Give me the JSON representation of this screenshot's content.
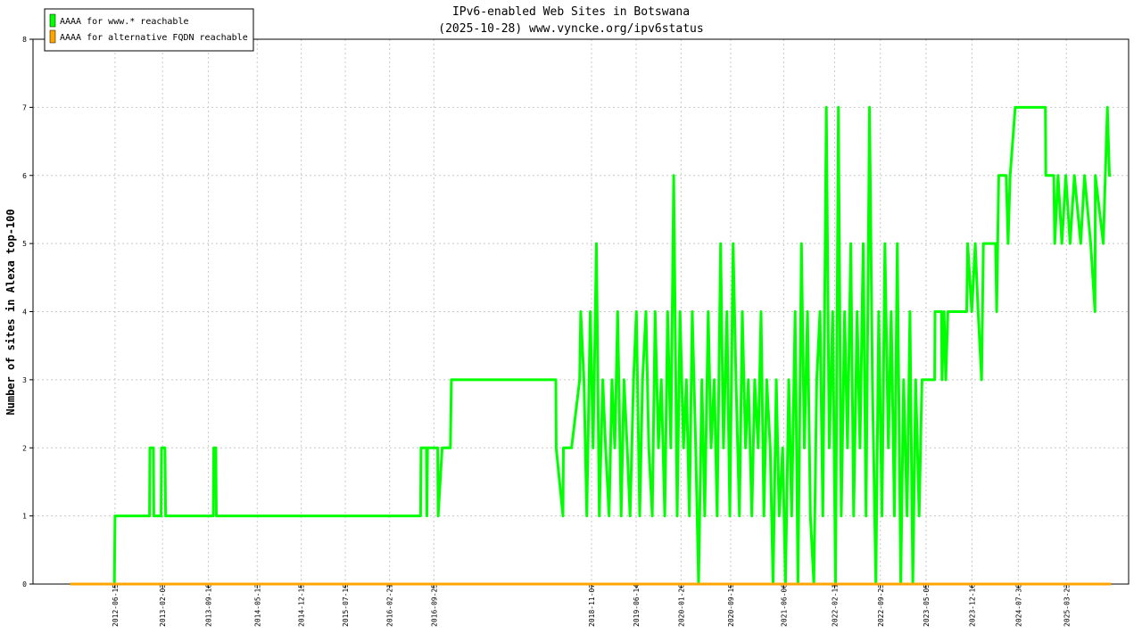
{
  "chart_data": {
    "type": "line",
    "title": "IPv6-enabled Web Sites in Botswana",
    "subtitle": "(2025-10-28) www.vyncke.org/ipv6status",
    "y_label": "Number of sites in Alexa top-100",
    "xlim": [
      "2011-05-10",
      "2026-01-22"
    ],
    "xticks": [
      "2012-06-15",
      "2013-02-03",
      "2013-09-16",
      "2014-05-13",
      "2014-12-15",
      "2015-07-19",
      "2016-02-21",
      "2016-09-25",
      "2018-11-07",
      "2019-06-14",
      "2020-01-20",
      "2020-09-19",
      "2021-06-06",
      "2022-02-11",
      "2022-09-23",
      "2023-05-05",
      "2023-12-16",
      "2024-07-30",
      "2025-03-23"
    ],
    "ylim": [
      0,
      8
    ],
    "yticks": [
      0,
      1,
      2,
      3,
      4,
      5,
      6,
      7,
      8
    ],
    "grid": true,
    "legend": "top-left",
    "series": [
      {
        "name": "AAAA for www.* reachable",
        "color": "#00ff00",
        "x": [
          "2011-11-08",
          "2012-06-12",
          "2012-06-15",
          "2012-12-01",
          "2012-12-03",
          "2012-12-20",
          "2012-12-22",
          "2013-01-27",
          "2013-01-29",
          "2013-02-15",
          "2013-02-18",
          "2013-10-10",
          "2013-10-12",
          "2013-10-22",
          "2013-10-25",
          "2016-07-22",
          "2016-07-24",
          "2016-08-20",
          "2016-08-22",
          "2016-08-25",
          "2016-10-14",
          "2016-10-16",
          "2016-11-05",
          "2016-12-15",
          "2016-12-20",
          "2018-05-16",
          "2018-05-18",
          "2018-06-20",
          "2018-06-22",
          "2018-08-01",
          "2018-09-10",
          "2018-09-15",
          "2018-10-01",
          "2018-10-15",
          "2018-11-01",
          "2018-11-15",
          "2018-12-01",
          "2018-12-15",
          "2019-01-01",
          "2019-01-15",
          "2019-02-01",
          "2019-02-15",
          "2019-03-01",
          "2019-03-15",
          "2019-04-01",
          "2019-04-15",
          "2019-05-01",
          "2019-05-15",
          "2019-06-01",
          "2019-06-15",
          "2019-07-01",
          "2019-07-15",
          "2019-08-01",
          "2019-08-15",
          "2019-09-01",
          "2019-09-15",
          "2019-10-01",
          "2019-10-15",
          "2019-11-01",
          "2019-11-15",
          "2019-12-01",
          "2019-12-15",
          "2020-01-01",
          "2020-01-15",
          "2020-02-01",
          "2020-02-15",
          "2020-03-01",
          "2020-03-15",
          "2020-04-01",
          "2020-04-15",
          "2020-05-01",
          "2020-05-15",
          "2020-06-01",
          "2020-06-15",
          "2020-07-01",
          "2020-07-15",
          "2020-08-01",
          "2020-08-15",
          "2020-09-01",
          "2020-09-15",
          "2020-10-01",
          "2020-10-15",
          "2020-11-01",
          "2020-11-15",
          "2020-12-01",
          "2020-12-15",
          "2021-01-01",
          "2021-01-15",
          "2021-02-01",
          "2021-02-15",
          "2021-03-01",
          "2021-03-15",
          "2021-04-01",
          "2021-04-15",
          "2021-05-01",
          "2021-05-15",
          "2021-06-01",
          "2021-06-15",
          "2021-07-01",
          "2021-07-15",
          "2021-08-01",
          "2021-08-15",
          "2021-09-01",
          "2021-09-15",
          "2021-10-01",
          "2021-10-15",
          "2021-11-01",
          "2021-11-15",
          "2021-12-01",
          "2021-12-15",
          "2022-01-01",
          "2022-01-15",
          "2022-02-01",
          "2022-02-15",
          "2022-03-01",
          "2022-03-15",
          "2022-04-01",
          "2022-04-15",
          "2022-05-01",
          "2022-05-15",
          "2022-06-01",
          "2022-06-15",
          "2022-07-01",
          "2022-07-15",
          "2022-08-01",
          "2022-08-15",
          "2022-09-01",
          "2022-09-15",
          "2022-10-01",
          "2022-10-15",
          "2022-11-01",
          "2022-11-15",
          "2022-12-01",
          "2022-12-15",
          "2023-01-01",
          "2023-01-15",
          "2023-02-01",
          "2023-02-15",
          "2023-03-01",
          "2023-03-15",
          "2023-04-01",
          "2023-04-15",
          "2023-06-16",
          "2023-06-18",
          "2023-07-20",
          "2023-07-22",
          "2023-08-01",
          "2023-08-10",
          "2023-08-20",
          "2023-11-20",
          "2023-11-25",
          "2023-12-15",
          "2024-01-01",
          "2024-01-15",
          "2024-02-01",
          "2024-02-10",
          "2024-04-10",
          "2024-04-15",
          "2024-04-25",
          "2024-06-01",
          "2024-06-10",
          "2024-06-20",
          "2024-07-15",
          "2024-12-10",
          "2024-12-12",
          "2025-01-20",
          "2025-01-25",
          "2025-02-10",
          "2025-03-01",
          "2025-03-20",
          "2025-04-10",
          "2025-05-01",
          "2025-06-01",
          "2025-06-20",
          "2025-07-20",
          "2025-08-10",
          "2025-08-12",
          "2025-09-20",
          "2025-10-10",
          "2025-10-20",
          "2025-10-28"
        ],
        "values": [
          0,
          0,
          1,
          1,
          2,
          2,
          1,
          1,
          2,
          2,
          1,
          1,
          2,
          2,
          1,
          1,
          2,
          2,
          1,
          2,
          2,
          1,
          2,
          2,
          3,
          3,
          2,
          1,
          2,
          2,
          3,
          4,
          3,
          1,
          4,
          2,
          5,
          1,
          3,
          2,
          1,
          3,
          2,
          4,
          1,
          3,
          2,
          1,
          3,
          4,
          1,
          3,
          4,
          2,
          1,
          4,
          2,
          3,
          1,
          4,
          2,
          6,
          1,
          4,
          2,
          3,
          1,
          4,
          2,
          0,
          3,
          1,
          4,
          2,
          3,
          1,
          5,
          2,
          4,
          1,
          5,
          3,
          1,
          4,
          2,
          3,
          1,
          3,
          2,
          4,
          1,
          3,
          2,
          0,
          3,
          1,
          2,
          0,
          3,
          1,
          4,
          0,
          5,
          2,
          4,
          1,
          0,
          3,
          4,
          1,
          7,
          2,
          4,
          0,
          7,
          1,
          4,
          2,
          5,
          1,
          4,
          2,
          5,
          1,
          7,
          3,
          0,
          4,
          1,
          5,
          2,
          4,
          1,
          5,
          0,
          3,
          1,
          4,
          0,
          3,
          1,
          3,
          3,
          4,
          4,
          3,
          4,
          3,
          4,
          4,
          5,
          4,
          5,
          4,
          3,
          5,
          5,
          4,
          6,
          6,
          5,
          6,
          7,
          7,
          6,
          6,
          5,
          6,
          5,
          6,
          5,
          6,
          5,
          6,
          5,
          4,
          6,
          5,
          7,
          6,
          6
        ]
      },
      {
        "name": "AAAA for alternative FQDN reachable",
        "color": "#ffa500",
        "x": [
          "2011-11-08",
          "2025-10-28"
        ],
        "values": [
          0,
          0
        ]
      }
    ]
  }
}
